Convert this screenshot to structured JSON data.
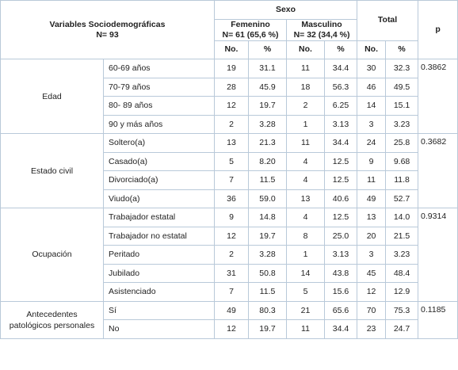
{
  "header": {
    "variables_title": "Variables Sociodemográficas",
    "variables_n": "N= 93",
    "sexo": "Sexo",
    "femenino_title": "Femenino",
    "femenino_n": "N= 61 (65,6 %)",
    "masculino_title": "Masculino",
    "masculino_n": "N= 32 (34,4 %)",
    "total": "Total",
    "p": "p",
    "no": "No.",
    "pct": "%"
  },
  "groups": [
    {
      "label_lines": [
        "Edad"
      ],
      "p": "0.3862",
      "rows": [
        {
          "label": "60-69 años",
          "f_no": "19",
          "f_pct": "31.1",
          "m_no": "11",
          "m_pct": "34.4",
          "t_no": "30",
          "t_pct": "32.3"
        },
        {
          "label": "70-79 años",
          "f_no": "28",
          "f_pct": "45.9",
          "m_no": "18",
          "m_pct": "56.3",
          "t_no": "46",
          "t_pct": "49.5"
        },
        {
          "label": "80- 89 años",
          "f_no": "12",
          "f_pct": "19.7",
          "m_no": "2",
          "m_pct": "6.25",
          "t_no": "14",
          "t_pct": "15.1"
        },
        {
          "label": "90 y más años",
          "f_no": "2",
          "f_pct": "3.28",
          "m_no": "1",
          "m_pct": "3.13",
          "t_no": "3",
          "t_pct": "3.23"
        }
      ]
    },
    {
      "label_lines": [
        "Estado civil"
      ],
      "p": "0.3682",
      "rows": [
        {
          "label": "Soltero(a)",
          "f_no": "13",
          "f_pct": "21.3",
          "m_no": "11",
          "m_pct": "34.4",
          "t_no": "24",
          "t_pct": "25.8"
        },
        {
          "label": "Casado(a)",
          "f_no": "5",
          "f_pct": "8.20",
          "m_no": "4",
          "m_pct": "12.5",
          "t_no": "9",
          "t_pct": "9.68"
        },
        {
          "label": "Divorciado(a)",
          "f_no": "7",
          "f_pct": "11.5",
          "m_no": "4",
          "m_pct": "12.5",
          "t_no": "11",
          "t_pct": "11.8"
        },
        {
          "label": "Viudo(a)",
          "f_no": "36",
          "f_pct": "59.0",
          "m_no": "13",
          "m_pct": "40.6",
          "t_no": "49",
          "t_pct": "52.7"
        }
      ]
    },
    {
      "label_lines": [
        "Ocupación"
      ],
      "p": "0.9314",
      "rows": [
        {
          "label": "Trabajador estatal",
          "f_no": "9",
          "f_pct": "14.8",
          "m_no": "4",
          "m_pct": "12.5",
          "t_no": "13",
          "t_pct": "14.0"
        },
        {
          "label": "Trabajador no estatal",
          "f_no": "12",
          "f_pct": "19.7",
          "m_no": "8",
          "m_pct": "25.0",
          "t_no": "20",
          "t_pct": "21.5"
        },
        {
          "label": "Peritado",
          "f_no": "2",
          "f_pct": "3.28",
          "m_no": "1",
          "m_pct": "3.13",
          "t_no": "3",
          "t_pct": "3.23"
        },
        {
          "label": "Jubilado",
          "f_no": "31",
          "f_pct": "50.8",
          "m_no": "14",
          "m_pct": "43.8",
          "t_no": "45",
          "t_pct": "48.4"
        },
        {
          "label": "Asistenciado",
          "f_no": "7",
          "f_pct": "11.5",
          "m_no": "5",
          "m_pct": "15.6",
          "t_no": "12",
          "t_pct": "12.9"
        }
      ]
    },
    {
      "label_lines": [
        "Antecedentes",
        "patológicos personales"
      ],
      "p": "0.1185",
      "rows": [
        {
          "label": "Sí",
          "f_no": "49",
          "f_pct": "80.3",
          "m_no": "21",
          "m_pct": "65.6",
          "t_no": "70",
          "t_pct": "75.3"
        },
        {
          "label": "No",
          "f_no": "12",
          "f_pct": "19.7",
          "m_no": "11",
          "m_pct": "34.4",
          "t_no": "23",
          "t_pct": "24.7"
        }
      ]
    }
  ]
}
